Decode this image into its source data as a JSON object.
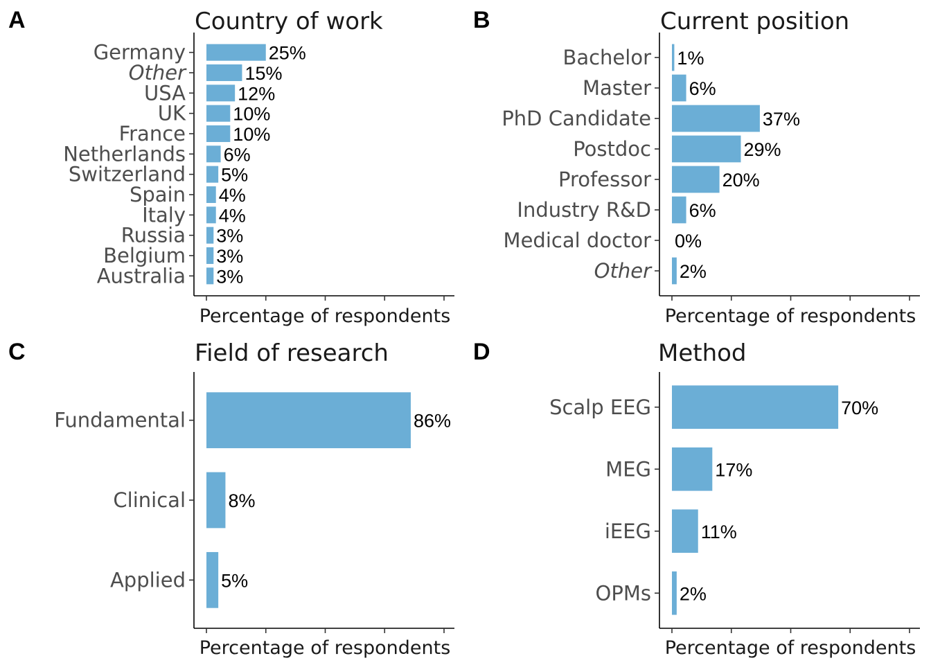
{
  "colors": {
    "bar": "#6baed6",
    "axis": "#000000",
    "tick": "#333333"
  },
  "chart_data": [
    {
      "panel": "A",
      "type": "bar",
      "orientation": "horizontal",
      "title": "Country of work",
      "xlabel": "Percentage of respondents",
      "xlim": [
        0,
        100
      ],
      "categories": [
        "Germany",
        "Other",
        "USA",
        "UK",
        "France",
        "Netherlands",
        "Switzerland",
        "Spain",
        "Italy",
        "Russia",
        "Belgium",
        "Australia"
      ],
      "italic_categories": [
        "Other"
      ],
      "values": [
        25,
        15,
        12,
        10,
        10,
        6,
        5,
        4,
        4,
        3,
        3,
        3
      ],
      "value_labels": [
        "25%",
        "15%",
        "12%",
        "10%",
        "10%",
        "6%",
        "5%",
        "4%",
        "4%",
        "3%",
        "3%",
        "3%"
      ]
    },
    {
      "panel": "B",
      "type": "bar",
      "orientation": "horizontal",
      "title": "Current position",
      "xlabel": "Percentage of respondents",
      "xlim": [
        0,
        100
      ],
      "categories": [
        "Bachelor",
        "Master",
        "PhD Candidate",
        "Postdoc",
        "Professor",
        "Industry R&D",
        "Medical doctor",
        "Other"
      ],
      "italic_categories": [
        "Other"
      ],
      "values": [
        1,
        6,
        37,
        29,
        20,
        6,
        0,
        2
      ],
      "value_labels": [
        "1%",
        "6%",
        "37%",
        "29%",
        "20%",
        "6%",
        "0%",
        "2%"
      ]
    },
    {
      "panel": "C",
      "type": "bar",
      "orientation": "horizontal",
      "title": "Field of research",
      "xlabel": "Percentage of respondents",
      "xlim": [
        0,
        100
      ],
      "categories": [
        "Fundamental",
        "Clinical",
        "Applied"
      ],
      "italic_categories": [],
      "values": [
        86,
        8,
        5
      ],
      "value_labels": [
        "86%",
        "8%",
        "5%"
      ]
    },
    {
      "panel": "D",
      "type": "bar",
      "orientation": "horizontal",
      "title": "Method",
      "xlabel": "Percentage of respondents",
      "xlim": [
        0,
        100
      ],
      "categories": [
        "Scalp EEG",
        "MEG",
        "iEEG",
        "OPMs"
      ],
      "italic_categories": [],
      "values": [
        70,
        17,
        11,
        2
      ],
      "value_labels": [
        "70%",
        "17%",
        "11%",
        "2%"
      ]
    }
  ]
}
